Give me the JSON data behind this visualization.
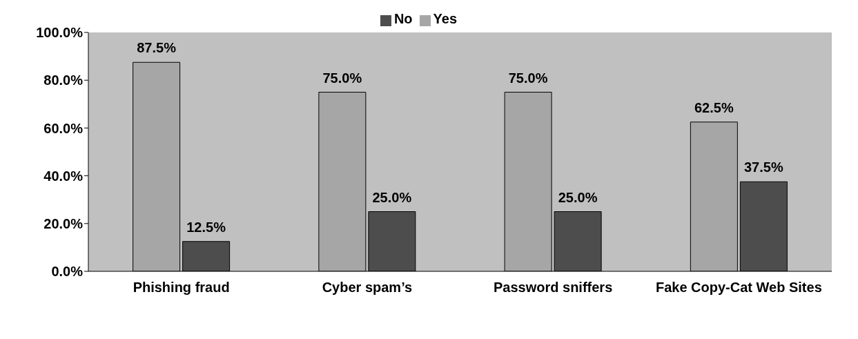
{
  "chart_data": {
    "type": "bar",
    "categories": [
      "Phishing fraud",
      "Cyber spam’s",
      "Password sniffers",
      "Fake Copy-Cat Web Sites"
    ],
    "series": [
      {
        "name": "Yes",
        "color": "#a6a6a6",
        "values": [
          87.5,
          75.0,
          75.0,
          62.5
        ],
        "value_labels": [
          "87.5%",
          "75.0%",
          "75.0%",
          "62.5%"
        ]
      },
      {
        "name": "No",
        "color": "#4d4d4d",
        "values": [
          12.5,
          25.0,
          25.0,
          37.5
        ],
        "value_labels": [
          "12.5%",
          "25.0%",
          "25.0%",
          "37.5%"
        ]
      }
    ],
    "ylim": [
      0,
      100
    ],
    "yticks": [
      {
        "value": 0,
        "label": "0.0%"
      },
      {
        "value": 20,
        "label": "20.0%"
      },
      {
        "value": 40,
        "label": "40.0%"
      },
      {
        "value": 60,
        "label": "60.0%"
      },
      {
        "value": 80,
        "label": "80.0%"
      },
      {
        "value": 100,
        "label": "100.0%"
      }
    ],
    "grid": false,
    "legend": "top"
  }
}
